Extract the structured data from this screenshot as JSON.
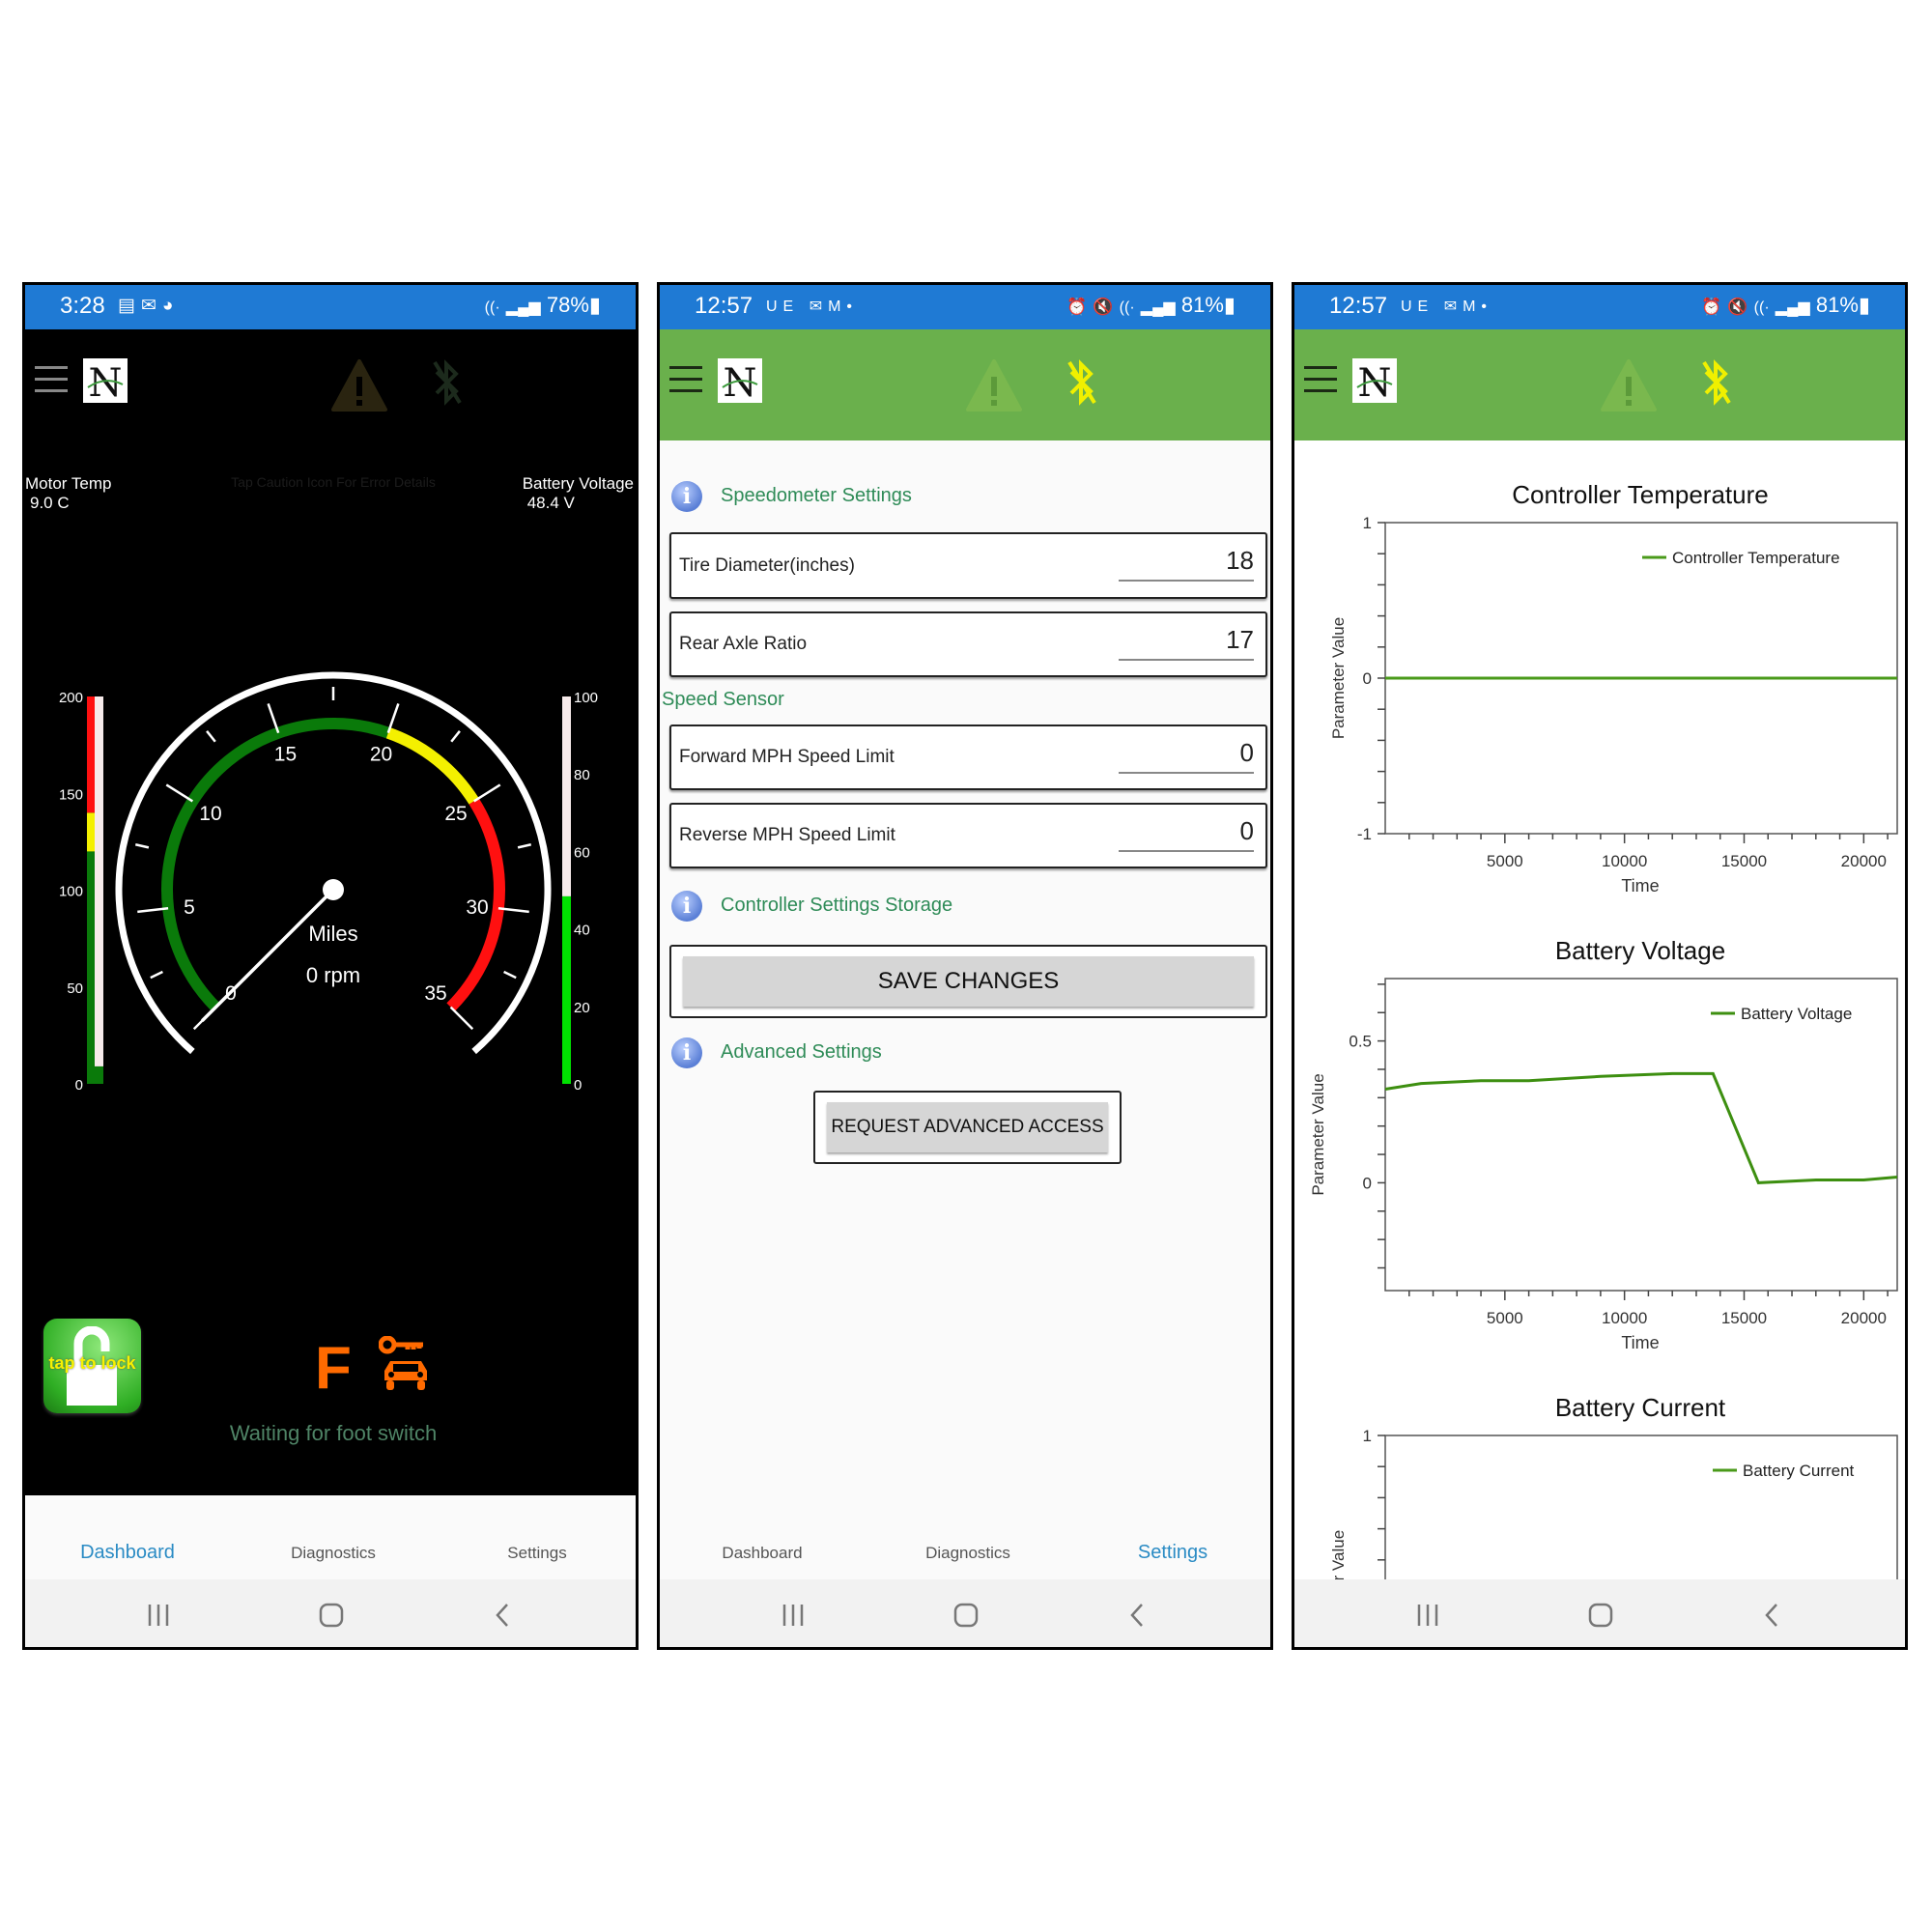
{
  "colors": {
    "status_bar": "#1f7ad4",
    "app_bar": "#6ab04c",
    "section_title": "#2e8b57",
    "active_tab": "#2a8bc4",
    "orange": "#ff6a00",
    "series": "#4a9a1a"
  },
  "bottom_nav": {
    "items": [
      "Dashboard",
      "Diagnostics",
      "Settings"
    ]
  },
  "dashboard": {
    "status": {
      "time": "3:28",
      "battery": "78%",
      "icons": [
        "notes-icon",
        "email-icon",
        "messenger-icon",
        "wifi-icon",
        "signal-icon",
        "battery-icon"
      ]
    },
    "motor_temp": {
      "label": "Motor Temp",
      "value": "9.0 C"
    },
    "hint": "Tap Caution Icon For Error Details",
    "battery_voltage": {
      "label": "Battery Voltage",
      "value": "48.4 V"
    },
    "gauge": {
      "min": 0,
      "max": 35,
      "value": 0,
      "major_labels": [
        "0",
        "5",
        "10",
        "15",
        "20",
        "25",
        "30",
        "35"
      ],
      "unit": "Miles",
      "rpm": "0 rpm",
      "zones": [
        {
          "from": 0,
          "to": 20,
          "color": "#0a7a0a"
        },
        {
          "from": 20,
          "to": 25,
          "color": "#f4f000"
        },
        {
          "from": 25,
          "to": 35,
          "color": "#ff1010"
        }
      ]
    },
    "temp_bar": {
      "min": 0,
      "max": 200,
      "value": 9,
      "labels": [
        "200",
        "150",
        "100",
        "50",
        "0"
      ],
      "zones": [
        {
          "from": 0,
          "to": 120,
          "color": "#0a7a0a"
        },
        {
          "from": 120,
          "to": 140,
          "color": "#f4f000"
        },
        {
          "from": 140,
          "to": 200,
          "color": "#ff1010"
        }
      ]
    },
    "voltage_bar": {
      "min": 0,
      "max": 100,
      "value": 48.4,
      "labels": [
        "100",
        "80",
        "60",
        "40",
        "20",
        "0"
      ],
      "fill_color": "#00e000"
    },
    "lock_label": "tap to lock",
    "direction": "F",
    "foot_switch_status": "Waiting for foot switch",
    "active_tab": "Dashboard"
  },
  "settings": {
    "status": {
      "time": "12:57",
      "carrier": "UE",
      "battery": "81%",
      "icons": [
        "email-icon",
        "gmail-icon",
        "dot-icon",
        "alarm-icon",
        "mute-icon",
        "wifi-icon",
        "signal-icon",
        "battery-icon"
      ]
    },
    "speedometer_title": "Speedometer Settings",
    "fields": [
      {
        "label": "Tire Diameter(inches)",
        "value": "18"
      },
      {
        "label": "Rear Axle Ratio",
        "value": "17"
      }
    ],
    "speed_sensor_title": "Speed Sensor",
    "speed_fields": [
      {
        "label": "Forward MPH Speed Limit",
        "value": "0"
      },
      {
        "label": "Reverse MPH Speed Limit",
        "value": "0"
      }
    ],
    "storage_title": "Controller Settings Storage",
    "save_label": "SAVE CHANGES",
    "advanced_title": "Advanced Settings",
    "advanced_label": "REQUEST ADVANCED ACCESS",
    "active_tab": "Settings"
  },
  "diagnostics": {
    "status": {
      "time": "12:57",
      "carrier": "UE",
      "battery": "81%"
    }
  },
  "chart_data": [
    {
      "type": "line",
      "title": "Controller Temperature",
      "xlabel": "Time",
      "ylabel": "Parameter Value",
      "xlim": [
        0,
        21400
      ],
      "ylim": [
        -1,
        1
      ],
      "xticks": [
        5000,
        10000,
        15000,
        20000
      ],
      "xminor": 1000,
      "yticks": [
        1,
        0,
        -1
      ],
      "yminor": 0.2,
      "legend": "top-right",
      "grid": false,
      "series": [
        {
          "name": "Controller Temperature",
          "color": "#4a9a1a",
          "x": [
            0,
            21400
          ],
          "y": [
            0,
            0
          ]
        }
      ]
    },
    {
      "type": "line",
      "title": "Battery Voltage",
      "xlabel": "Time",
      "ylabel": "Parameter Value",
      "xlim": [
        0,
        21400
      ],
      "ylim": [
        -0.38,
        0.72
      ],
      "xticks": [
        5000,
        10000,
        15000,
        20000
      ],
      "xminor": 1000,
      "yticks": [
        0.5,
        0
      ],
      "yminor": 0.1,
      "legend": "top-right",
      "grid": false,
      "series": [
        {
          "name": "Battery Voltage",
          "color": "#3d8f10",
          "x": [
            0,
            1500,
            4000,
            6000,
            9000,
            12000,
            13700,
            15600,
            18000,
            20000,
            21400
          ],
          "y": [
            0.33,
            0.35,
            0.36,
            0.36,
            0.375,
            0.385,
            0.385,
            0,
            0.01,
            0.01,
            0.02
          ]
        }
      ]
    },
    {
      "type": "line",
      "title": "Battery Current",
      "xlabel": "",
      "ylabel": "Parameter Value",
      "xlim": [
        0,
        21400
      ],
      "ylim": [
        -1,
        1
      ],
      "xticks": [],
      "xminor": 0,
      "yticks": [
        1
      ],
      "yminor": 0.2,
      "legend": "top-right",
      "grid": false,
      "series": [
        {
          "name": "Battery Current",
          "color": "#4a9a1a",
          "x": [],
          "y": []
        }
      ]
    }
  ]
}
